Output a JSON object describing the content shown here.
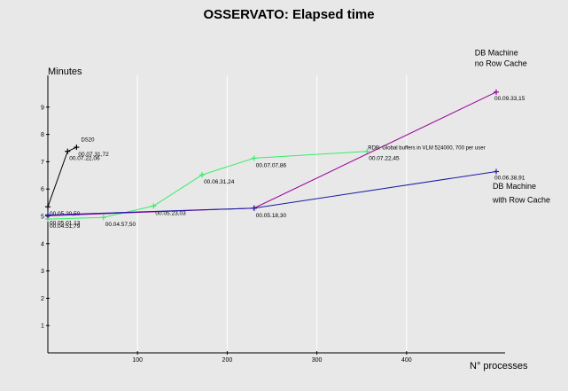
{
  "chart_data": {
    "type": "line",
    "title": "OSSERVATO: Elapsed time",
    "xlabel": "N° processes",
    "ylabel": "Minutes",
    "xlim": [
      0,
      500
    ],
    "ylim": [
      0,
      10
    ],
    "xticks": [
      100,
      200,
      300,
      400
    ],
    "yticks": [
      1,
      2,
      3,
      4,
      5,
      6,
      7,
      8,
      9
    ],
    "grid": "vertical",
    "colors": {
      "black": "#000000",
      "green": "#33ee66",
      "purple": "#990099",
      "blue": "#1a1aa6",
      "grid": "#ffffff",
      "background": "#e8e8e8"
    },
    "series": [
      {
        "color_key": "black",
        "points": [
          {
            "x": 0,
            "y": 5.35,
            "label": "00.05.20,50"
          },
          {
            "x": 22,
            "y": 7.38,
            "label": "00.07.22,06"
          },
          {
            "x": 32,
            "y": 7.53,
            "label": "00.07.31,72"
          }
        ]
      },
      {
        "color_key": "green",
        "points": [
          {
            "x": 0,
            "y": 4.9,
            "label": "00.04.51,79"
          },
          {
            "x": 62,
            "y": 4.96,
            "label": "00.04.57,50"
          },
          {
            "x": 118,
            "y": 5.38,
            "label": "00.05.23,03"
          },
          {
            "x": 172,
            "y": 6.52,
            "label": "00.06.31,24"
          },
          {
            "x": 230,
            "y": 7.13,
            "label": "00.07.07,86"
          },
          {
            "x": 356,
            "y": 7.38,
            "label": "00.07.22,45"
          }
        ]
      },
      {
        "color_key": "purple",
        "points": [
          {
            "x": 0,
            "y": 5.02,
            "label": "00.05.01,13"
          },
          {
            "x": 230,
            "y": 5.3,
            "label": ""
          },
          {
            "x": 500,
            "y": 9.55,
            "label": "00.09.33,15"
          }
        ]
      },
      {
        "color_key": "blue",
        "points": [
          {
            "x": 0,
            "y": 5.05,
            "label": ""
          },
          {
            "x": 230,
            "y": 5.3,
            "label": "00.05.18,30"
          },
          {
            "x": 500,
            "y": 6.64,
            "label": "00.06.38,91"
          }
        ]
      }
    ],
    "annotations": [
      {
        "text": "DS20",
        "x": 37,
        "y": 7.75,
        "size": "small"
      },
      {
        "text": "RDB: Global buffers in VLM 524000, 700 per user",
        "x": 357,
        "y": 7.45,
        "size": "small"
      },
      {
        "text": "DB Machine",
        "x": 476,
        "y": 10.9,
        "size": "normal"
      },
      {
        "text": "no  Row  Cache",
        "x": 476,
        "y": 10.5,
        "size": "normal"
      },
      {
        "text": "DB Machine",
        "x": 496,
        "y": 6.0,
        "size": "normal"
      },
      {
        "text": "with Row Cache",
        "x": 496,
        "y": 5.5,
        "size": "normal"
      }
    ]
  }
}
